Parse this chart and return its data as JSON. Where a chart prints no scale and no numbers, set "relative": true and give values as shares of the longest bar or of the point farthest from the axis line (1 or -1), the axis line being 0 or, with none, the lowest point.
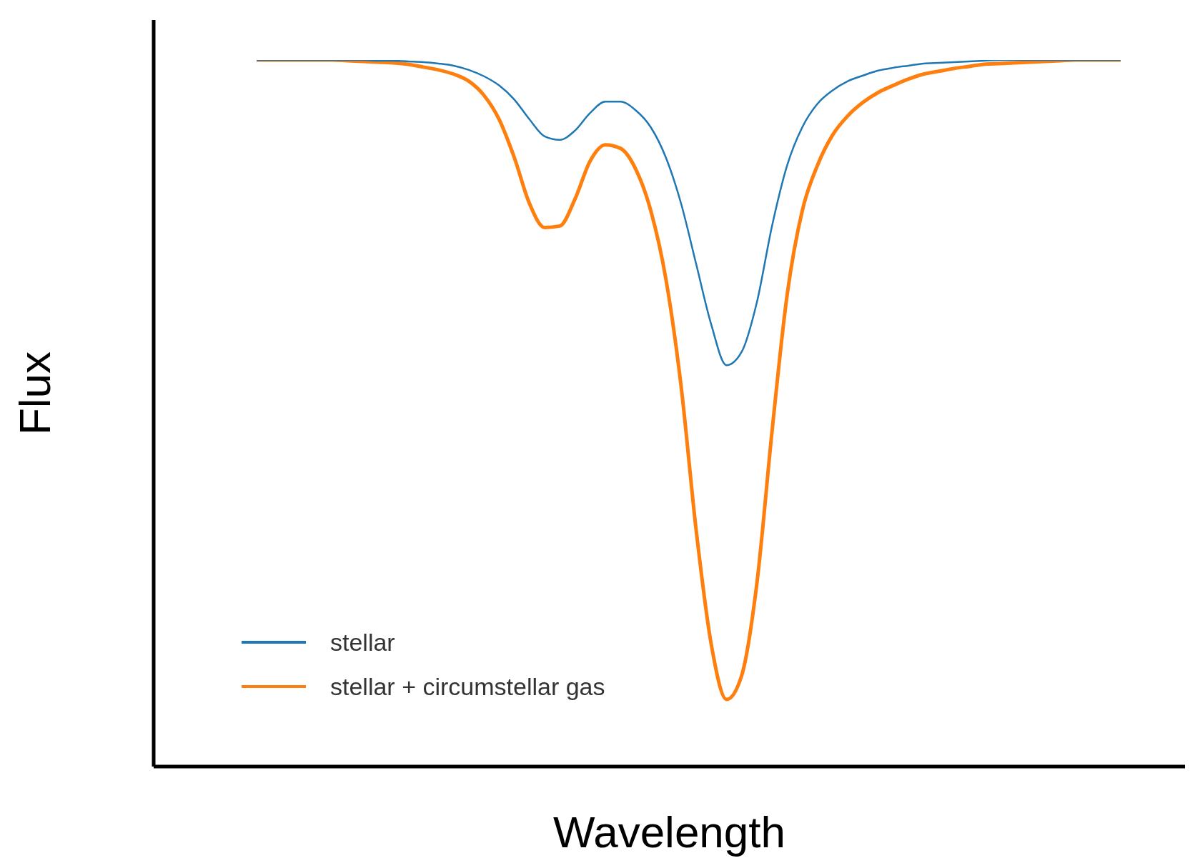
{
  "chart_data": {
    "type": "line",
    "relative": true,
    "xlabel": "Wavelength",
    "ylabel": "Flux",
    "legend": "bottom left",
    "marker": "none",
    "line_style": "solid",
    "categories": [
      null,
      null,
      null,
      null,
      null,
      null,
      null,
      null,
      null,
      null,
      null,
      null,
      null,
      null,
      null,
      null,
      null,
      null,
      null,
      null,
      null,
      null,
      null,
      null,
      null,
      null,
      null,
      null,
      null,
      null,
      null,
      null,
      null,
      null,
      null,
      null,
      null,
      null,
      null,
      null,
      null,
      null,
      null,
      null,
      null,
      null,
      null,
      null,
      null,
      null,
      null,
      null,
      null,
      null,
      null,
      null,
      null,
      null
    ],
    "series": [
      {
        "name": "stellar",
        "color": "#1f77b4",
        "values": [
          1,
          1,
          1,
          1,
          1,
          1,
          1,
          1,
          0.999,
          0.999,
          0.998,
          0.997,
          0.995,
          0.992,
          0.986,
          0.977,
          0.964,
          0.944,
          0.916,
          0.892,
          0.887,
          0.9,
          0.925,
          0.941,
          0.941,
          0.929,
          0.905,
          0.862,
          0.797,
          0.711,
          0.625,
          0.568,
          0.587,
          0.657,
          0.765,
          0.851,
          0.905,
          0.938,
          0.957,
          0.97,
          0.978,
          0.985,
          0.989,
          0.992,
          0.995,
          0.996,
          0.997,
          0.998,
          0.999,
          1,
          1,
          1,
          1,
          1,
          1,
          1,
          1,
          1
        ]
      },
      {
        "name": "stellar + circumstellar gas",
        "color": "#ff7f0e",
        "values": [
          1,
          1,
          1,
          1,
          1,
          1,
          0.999,
          0.998,
          0.997,
          0.996,
          0.994,
          0.99,
          0.986,
          0.98,
          0.97,
          0.95,
          0.916,
          0.862,
          0.797,
          0.763,
          0.765,
          0.803,
          0.857,
          0.88,
          0.875,
          0.846,
          0.787,
          0.69,
          0.539,
          0.334,
          0.172,
          0.095,
          0.129,
          0.259,
          0.474,
          0.668,
          0.787,
          0.851,
          0.894,
          0.921,
          0.94,
          0.954,
          0.964,
          0.973,
          0.98,
          0.984,
          0.988,
          0.991,
          0.994,
          0.995,
          0.996,
          0.997,
          0.998,
          0.999,
          1,
          1,
          1,
          1
        ]
      }
    ]
  }
}
